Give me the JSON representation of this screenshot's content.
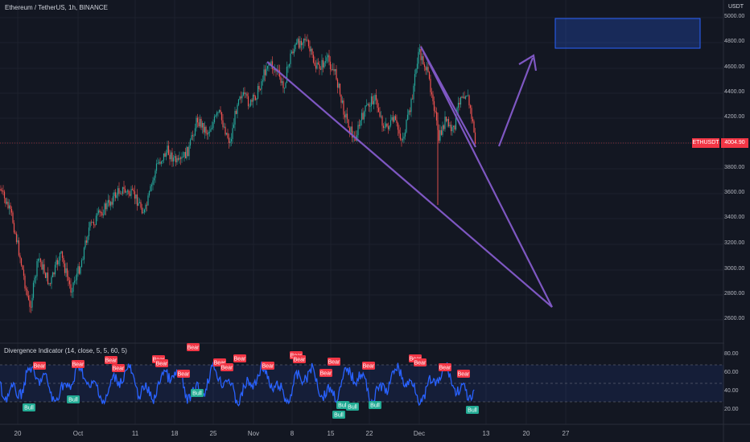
{
  "header": {
    "symbol_title": "Ethereum / TetherUS, 1h, BINANCE",
    "currency": "USDT"
  },
  "price_axis": {
    "labels": [
      "5000.00",
      "4800.00",
      "4600.00",
      "4400.00",
      "4200.00",
      "4000.00",
      "3800.00",
      "3600.00",
      "3400.00",
      "3200.00",
      "3000.00",
      "2800.00",
      "2600.00"
    ]
  },
  "current_price": {
    "symbol": "ETHUSDT",
    "value": "4004.90",
    "color": "#f23645"
  },
  "indicator": {
    "title": "Divergence Indicator (14, close, 5, 5, 60, 5)",
    "axis_labels": [
      "80.00",
      "60.00",
      "40.00",
      "20.00"
    ],
    "bear_label": "Bear",
    "bull_label": "Bull",
    "line_color": "#2962ff"
  },
  "time_axis": {
    "labels": [
      "20",
      "Oct",
      "11",
      "18",
      "25",
      "Nov",
      "8",
      "15",
      "22",
      "Dec",
      "13",
      "20",
      "27"
    ]
  },
  "colors": {
    "background": "#131722",
    "up_candle": "#26a69a",
    "down_candle": "#ef5350",
    "drawing": "#7e57c2",
    "target_box": "#2962ff"
  }
}
